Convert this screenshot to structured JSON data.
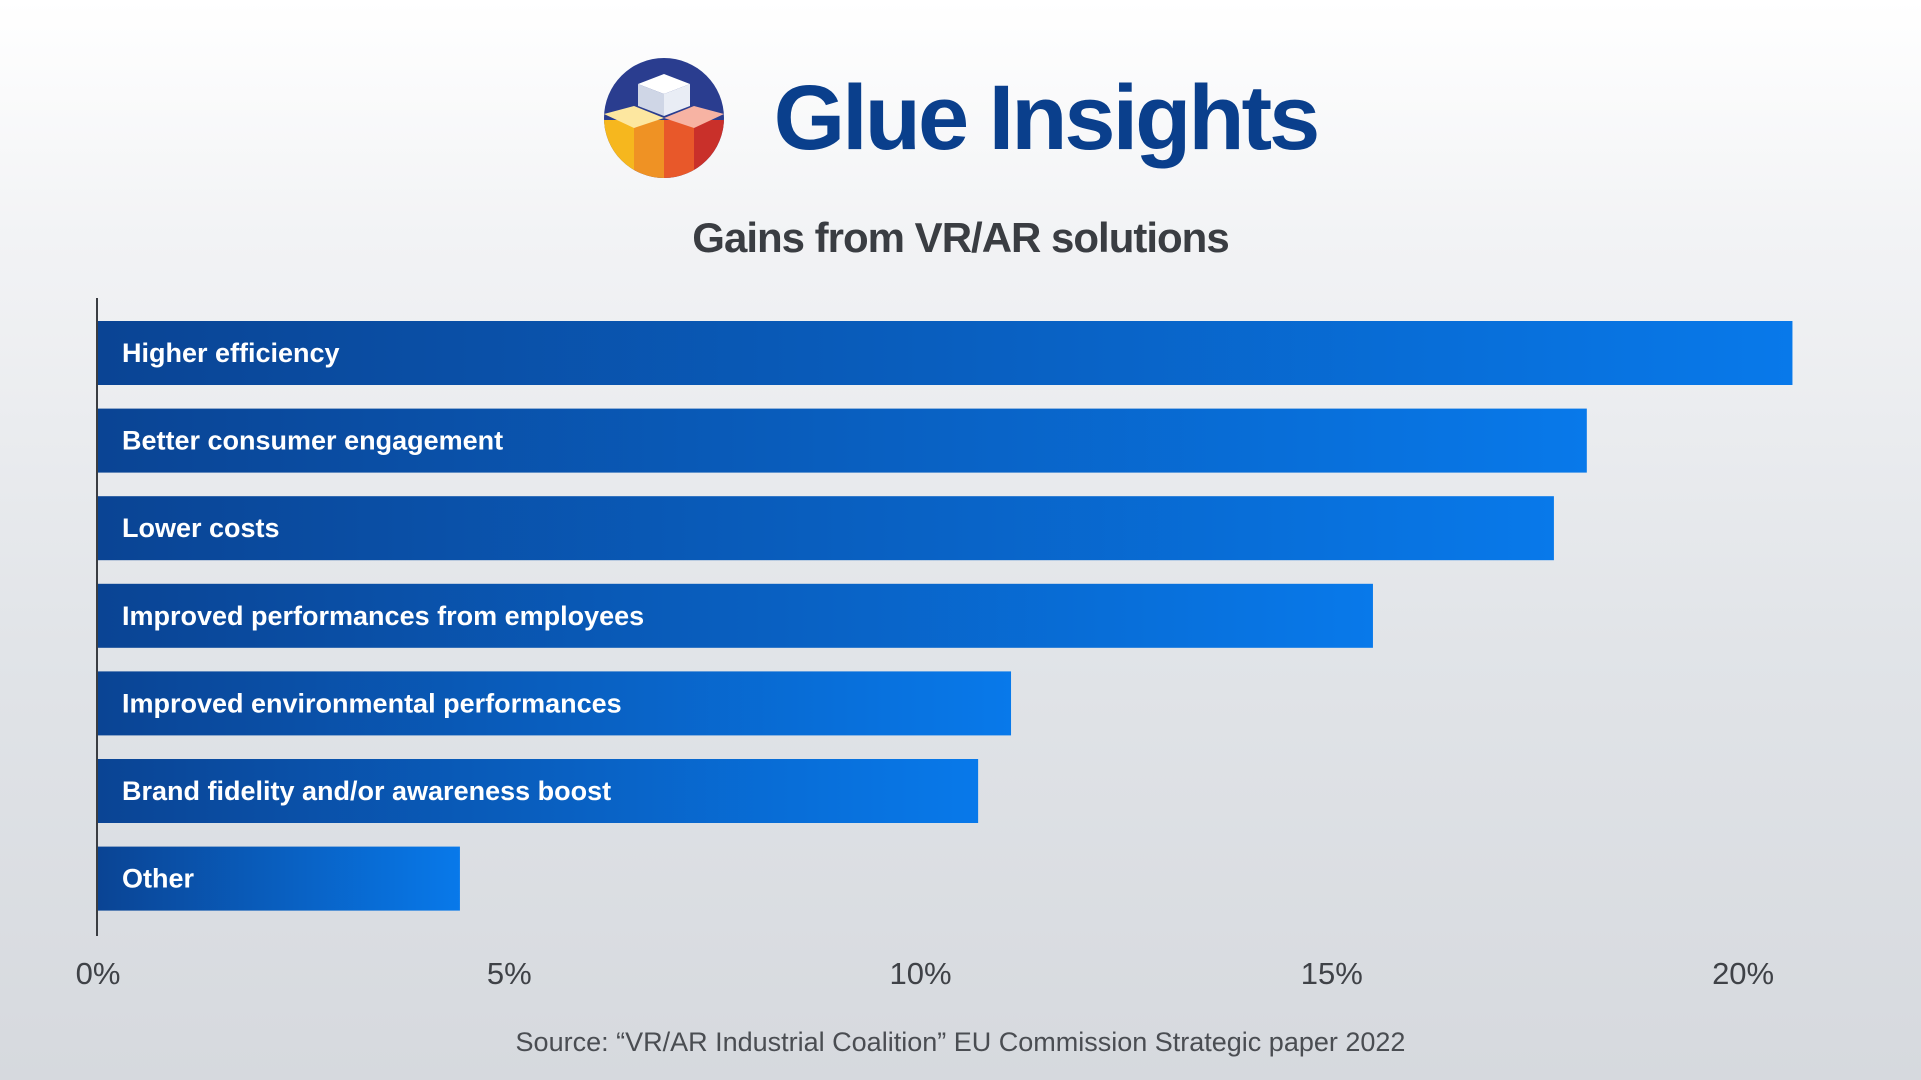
{
  "brand": {
    "name": "Glue Insights",
    "logo_icon": "stacked-cubes-logo",
    "colors": {
      "navy": "#0a3f8c",
      "circle": "#2a3d8f",
      "orange": "#ef7d1e",
      "red": "#d6402b",
      "yellow": "#f6b71e"
    }
  },
  "chart_data": {
    "type": "bar",
    "orientation": "horizontal",
    "title": "Gains from VR/AR solutions",
    "categories": [
      "Higher efficiency",
      "Better consumer engagement",
      "Lower costs",
      "Improved performances from employees",
      "Improved environmental performances",
      "Brand fidelity and/or awareness boost",
      "Other"
    ],
    "values": [
      20.6,
      18.1,
      17.7,
      15.5,
      11.1,
      10.7,
      4.4
    ],
    "unit": "%",
    "xlim": [
      0,
      20.4
    ],
    "xticks": [
      "0%",
      "5%",
      "10%",
      "15%",
      "20%"
    ],
    "xtick_values": [
      0,
      5,
      10,
      15,
      20
    ],
    "grid": false,
    "legend": "none",
    "bar_colors": {
      "start": "#0a4494",
      "end": "#0879ea"
    }
  },
  "footer": {
    "source": "Source: “VR/AR Industrial Coalition” EU Commission Strategic paper 2022"
  }
}
